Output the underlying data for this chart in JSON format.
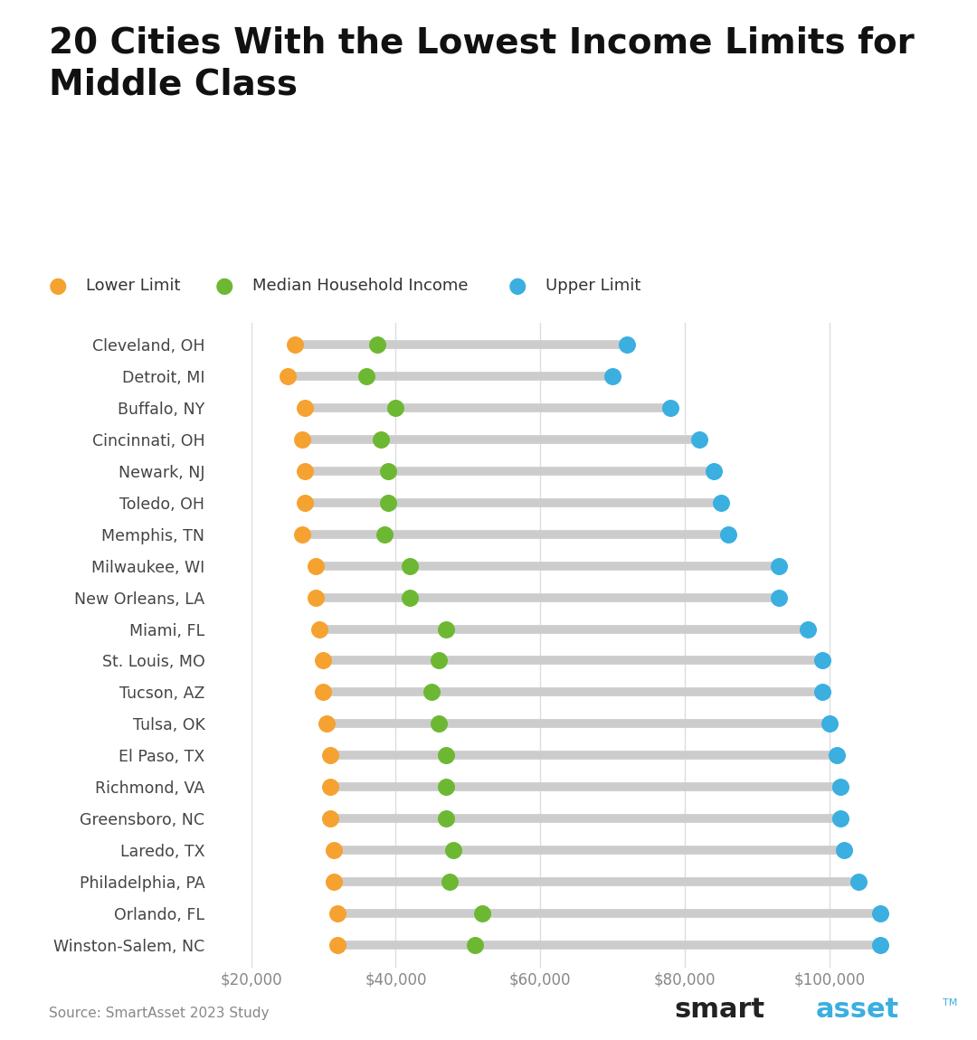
{
  "title": "20 Cities With the Lowest Income Limits for\nMiddle Class",
  "cities": [
    "Cleveland, OH",
    "Detroit, MI",
    "Buffalo, NY",
    "Cincinnati, OH",
    "Newark, NJ",
    "Toledo, OH",
    "Memphis, TN",
    "Milwaukee, WI",
    "New Orleans, LA",
    "Miami, FL",
    "St. Louis, MO",
    "Tucson, AZ",
    "Tulsa, OK",
    "El Paso, TX",
    "Richmond, VA",
    "Greensboro, NC",
    "Laredo, TX",
    "Philadelphia, PA",
    "Orlando, FL",
    "Winston-Salem, NC"
  ],
  "lower_limit": [
    26000,
    25000,
    27500,
    27000,
    27500,
    27500,
    27000,
    29000,
    29000,
    29500,
    30000,
    30000,
    30500,
    31000,
    31000,
    31000,
    31500,
    31500,
    32000,
    32000
  ],
  "median_income": [
    37500,
    36000,
    40000,
    38000,
    39000,
    39000,
    38500,
    42000,
    42000,
    47000,
    46000,
    45000,
    46000,
    47000,
    47000,
    47000,
    48000,
    47500,
    52000,
    51000
  ],
  "upper_limit": [
    72000,
    70000,
    78000,
    82000,
    84000,
    85000,
    86000,
    93000,
    93000,
    97000,
    99000,
    99000,
    100000,
    101000,
    101500,
    101500,
    102000,
    104000,
    107000,
    107000
  ],
  "lower_color": "#F5A230",
  "median_color": "#6DB832",
  "upper_color": "#3AAFE0",
  "background_color": "#FFFFFF",
  "dot_size": 160,
  "xlabel_ticks": [
    20000,
    40000,
    60000,
    80000,
    100000
  ],
  "xlabel_labels": [
    "$20,000",
    "$40,000",
    "$60,000",
    "$80,000",
    "$100,000"
  ],
  "source_text": "Source: SmartAsset 2023 Study",
  "legend_labels": [
    "Lower Limit",
    "Median Household Income",
    "Upper Limit"
  ]
}
